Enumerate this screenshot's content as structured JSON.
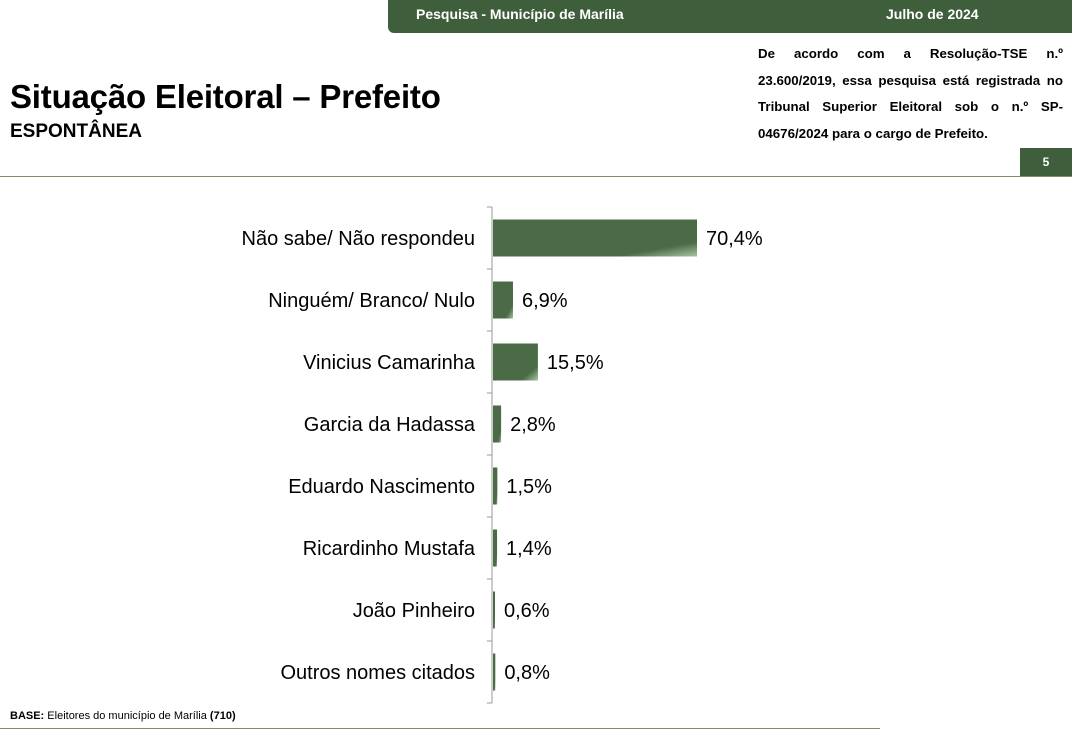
{
  "header": {
    "survey_label": "Pesquisa - Município de Marília",
    "date_label": "Julho de 2024"
  },
  "title": "Situação Eleitoral – Prefeito",
  "subtitle": "ESPONTÂNEA",
  "legal_note": "De acordo com a Resolução-TSE n.º 23.600/2019, essa pesquisa está registrada no Tribunal Superior Eleitoral sob o n.º SP-04676/2024 para o cargo de Prefeito.",
  "page_number": "5",
  "footer": {
    "base_label": "BASE:",
    "base_text": " Eleitores do município de Marília ",
    "base_count": "(710)"
  },
  "colors": {
    "accent": "#3f5f3c",
    "bar": "#4a6b45",
    "bar_highlight": "#a9c3a0"
  },
  "chart_data": {
    "type": "bar",
    "orientation": "horizontal",
    "categories": [
      "Não sabe/ Não respondeu",
      "Ninguém/ Branco/ Nulo",
      "Vinicius Camarinha",
      "Garcia da Hadassa",
      "Eduardo Nascimento",
      "Ricardinho Mustafa",
      "João Pinheiro",
      "Outros nomes citados"
    ],
    "values": [
      70.4,
      6.9,
      15.5,
      2.8,
      1.5,
      1.4,
      0.6,
      0.8
    ],
    "value_labels": [
      "70,4%",
      "6,9%",
      "15,5%",
      "2,8%",
      "1,5%",
      "1,4%",
      "0,6%",
      "0,8%"
    ],
    "unit": "%",
    "title": "",
    "xlabel": "",
    "ylabel": "",
    "grid": false,
    "legend": "none"
  }
}
